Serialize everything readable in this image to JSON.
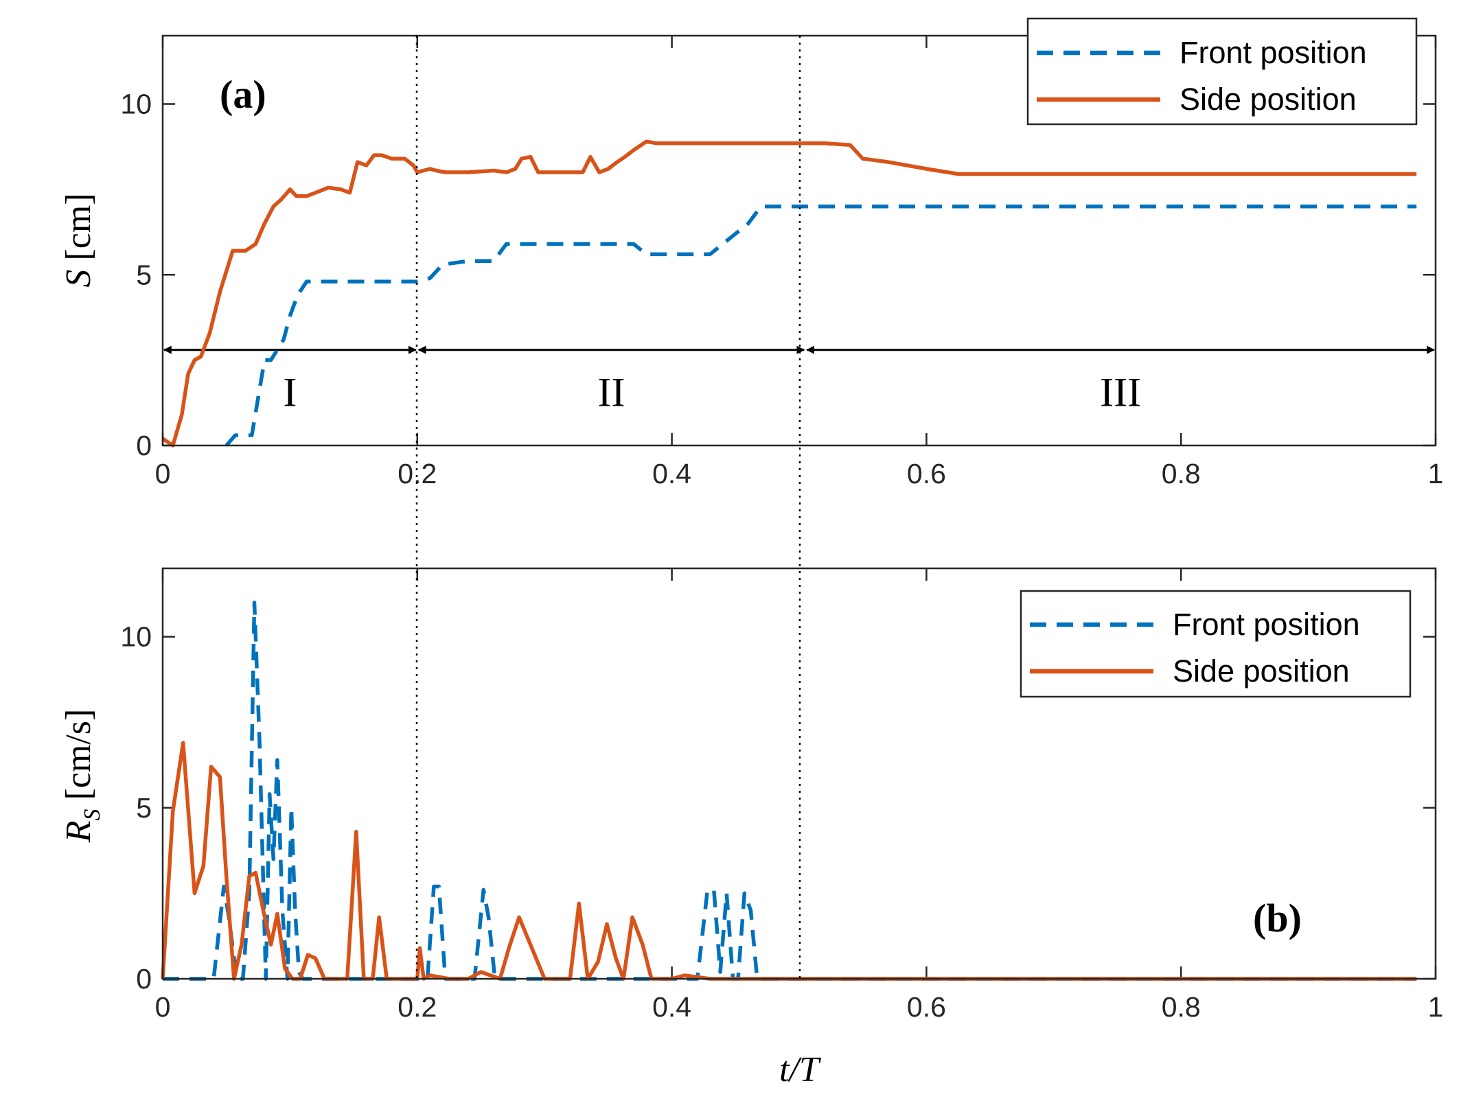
{
  "colors": {
    "front": "#0072BD",
    "side": "#D95319",
    "axes": "#262626"
  },
  "chart_data": [
    {
      "type": "line",
      "panel_label": "(a)",
      "ylabel_symbol": "S",
      "ylabel_unit": "[cm]",
      "xlim": [
        0,
        1
      ],
      "ylim": [
        0,
        12
      ],
      "xticks": [
        0,
        0.2,
        0.4,
        0.6,
        0.8,
        1
      ],
      "xtick_labels": [
        "0",
        "0.2",
        "0.4",
        "0.6",
        "0.8",
        "1"
      ],
      "yticks": [
        0,
        5,
        10
      ],
      "ytick_labels": [
        "0",
        "5",
        "10"
      ],
      "legend": [
        "Front position",
        "Side position"
      ],
      "legend_loc": "top-right",
      "regions": [
        {
          "label": "I",
          "from": 0,
          "to": 0.2
        },
        {
          "label": "II",
          "from": 0.2,
          "to": 0.505
        },
        {
          "label": "III",
          "from": 0.505,
          "to": 1
        }
      ],
      "region_arrow_y": 2.8,
      "series": [
        {
          "name": "Front position",
          "style": "dashed",
          "x": [
            0.05,
            0.057,
            0.063,
            0.07,
            0.08,
            0.085,
            0.095,
            0.1,
            0.106,
            0.113,
            0.12,
            0.15,
            0.2,
            0.21,
            0.22,
            0.24,
            0.26,
            0.27,
            0.3,
            0.33,
            0.36,
            0.37,
            0.38,
            0.42,
            0.43,
            0.45,
            0.46,
            0.47,
            0.5,
            0.55,
            0.7,
            0.85,
            0.985
          ],
          "y": [
            0,
            0.3,
            0.3,
            0.3,
            2.5,
            2.5,
            3.1,
            3.8,
            4.4,
            4.8,
            4.8,
            4.8,
            4.8,
            4.9,
            5.3,
            5.4,
            5.4,
            5.9,
            5.9,
            5.9,
            5.9,
            5.9,
            5.6,
            5.6,
            5.6,
            6.2,
            6.5,
            7.0,
            7.0,
            7.0,
            7.0,
            7.0,
            7.0
          ]
        },
        {
          "name": "Side position",
          "style": "solid",
          "x": [
            0,
            0.008,
            0.015,
            0.02,
            0.025,
            0.03,
            0.037,
            0.045,
            0.055,
            0.06,
            0.065,
            0.073,
            0.08,
            0.087,
            0.093,
            0.1,
            0.105,
            0.113,
            0.12,
            0.13,
            0.14,
            0.147,
            0.153,
            0.16,
            0.166,
            0.172,
            0.18,
            0.19,
            0.197,
            0.2,
            0.21,
            0.215,
            0.222,
            0.24,
            0.26,
            0.27,
            0.277,
            0.282,
            0.289,
            0.295,
            0.3,
            0.33,
            0.336,
            0.343,
            0.35,
            0.357,
            0.363,
            0.37,
            0.38,
            0.388,
            0.4,
            0.44,
            0.5,
            0.52,
            0.54,
            0.55,
            0.57,
            0.6,
            0.625,
            0.7,
            0.8,
            0.9,
            0.985
          ],
          "y": [
            0.2,
            0.0,
            0.9,
            2.1,
            2.5,
            2.6,
            3.3,
            4.5,
            5.7,
            5.7,
            5.7,
            5.9,
            6.5,
            7.0,
            7.2,
            7.5,
            7.3,
            7.3,
            7.4,
            7.55,
            7.5,
            7.4,
            8.3,
            8.2,
            8.5,
            8.5,
            8.4,
            8.4,
            8.2,
            8.0,
            8.1,
            8.05,
            8.0,
            8.0,
            8.05,
            8.0,
            8.1,
            8.4,
            8.45,
            8.0,
            8.0,
            8.0,
            8.45,
            8.0,
            8.1,
            8.3,
            8.45,
            8.65,
            8.9,
            8.85,
            8.85,
            8.85,
            8.85,
            8.85,
            8.8,
            8.4,
            8.3,
            8.1,
            7.95,
            7.95,
            7.95,
            7.95,
            7.95
          ]
        }
      ]
    },
    {
      "type": "line",
      "panel_label": "(b)",
      "ylabel_symbol": "R",
      "ylabel_sub": "S",
      "ylabel_unit": "[cm/s]",
      "xlabel": "t/T",
      "xlim": [
        0,
        1
      ],
      "ylim": [
        0,
        12
      ],
      "xticks": [
        0,
        0.2,
        0.4,
        0.6,
        0.8,
        1
      ],
      "xtick_labels": [
        "0",
        "0.2",
        "0.4",
        "0.6",
        "0.8",
        "1"
      ],
      "yticks": [
        0,
        5,
        10
      ],
      "ytick_labels": [
        "0",
        "5",
        "10"
      ],
      "legend": [
        "Front position",
        "Side position"
      ],
      "legend_loc": "top-right",
      "series": [
        {
          "name": "Front position",
          "style": "dashed",
          "x": [
            0,
            0.04,
            0.048,
            0.052,
            0.058,
            0.063,
            0.068,
            0.072,
            0.076,
            0.081,
            0.084,
            0.087,
            0.09,
            0.094,
            0.098,
            0.101,
            0.104,
            0.107,
            0.11,
            0.113,
            0.2,
            0.208,
            0.213,
            0.217,
            0.222,
            0.227,
            0.245,
            0.252,
            0.256,
            0.261,
            0.266,
            0.42,
            0.428,
            0.433,
            0.438,
            0.443,
            0.448,
            0.452,
            0.457,
            0.462,
            0.467,
            0.5,
            0.7,
            0.85,
            0.985
          ],
          "y": [
            0,
            0,
            2.7,
            1.8,
            0,
            0,
            2.5,
            11.0,
            7.0,
            0,
            5.4,
            3.5,
            6.4,
            2.0,
            0,
            5.0,
            2.0,
            0.2,
            0,
            0,
            0,
            0,
            2.7,
            2.7,
            0,
            0,
            0,
            2.6,
            1.8,
            0,
            0,
            0,
            2.6,
            2.6,
            0.2,
            2.5,
            0,
            0,
            2.5,
            2.0,
            0,
            0,
            0,
            0,
            0
          ]
        },
        {
          "name": "Side position",
          "style": "solid",
          "x": [
            0,
            0.008,
            0.016,
            0.025,
            0.032,
            0.038,
            0.045,
            0.05,
            0.056,
            0.062,
            0.068,
            0.073,
            0.079,
            0.085,
            0.09,
            0.096,
            0.102,
            0.108,
            0.114,
            0.12,
            0.127,
            0.133,
            0.145,
            0.152,
            0.158,
            0.165,
            0.17,
            0.176,
            0.2,
            0.202,
            0.205,
            0.21,
            0.225,
            0.24,
            0.25,
            0.265,
            0.272,
            0.28,
            0.3,
            0.32,
            0.327,
            0.334,
            0.342,
            0.349,
            0.356,
            0.362,
            0.369,
            0.377,
            0.384,
            0.4,
            0.41,
            0.43,
            0.5,
            0.6,
            0.7,
            0.8,
            0.9,
            0.985
          ],
          "y": [
            0,
            4.9,
            6.9,
            2.5,
            3.3,
            6.2,
            5.9,
            3.0,
            0,
            1.0,
            3.0,
            3.1,
            2.0,
            1.0,
            1.9,
            0.3,
            0,
            0,
            0.7,
            0.6,
            0,
            0,
            0,
            4.3,
            0,
            0,
            1.8,
            0,
            0,
            0.9,
            0,
            0.1,
            0,
            0,
            0.2,
            0,
            0.9,
            1.8,
            0,
            0,
            2.2,
            0,
            0.5,
            1.6,
            0.6,
            0,
            1.8,
            1.0,
            0,
            0,
            0.1,
            0,
            0,
            0,
            0,
            0,
            0,
            0
          ]
        }
      ]
    }
  ]
}
